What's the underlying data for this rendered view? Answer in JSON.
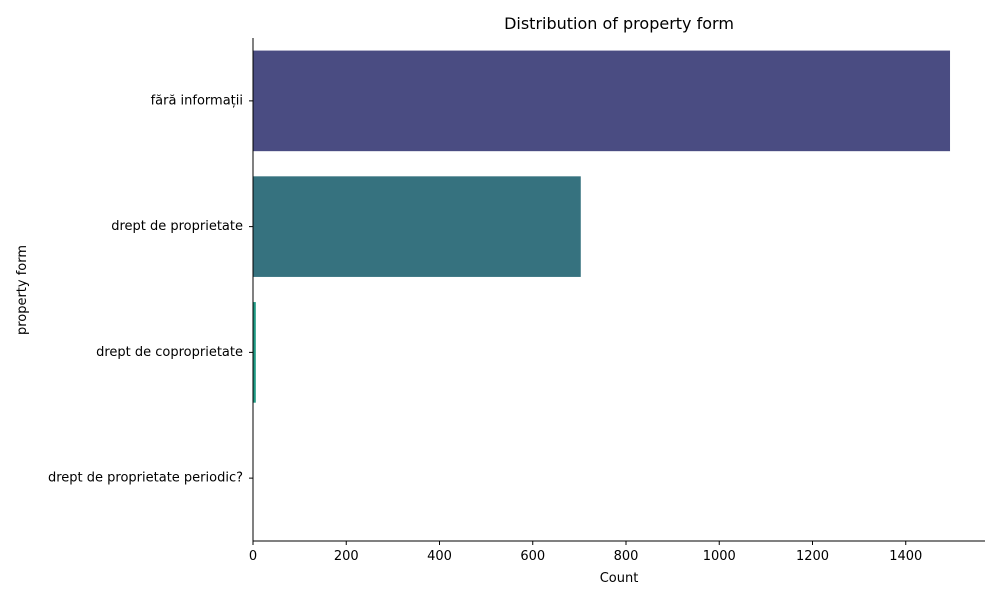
{
  "chart_data": {
    "type": "bar",
    "orientation": "horizontal",
    "title": "Distribution of property form",
    "xlabel": "Count",
    "ylabel": "property form",
    "categories": [
      "fără informații",
      "drept de proprietate",
      "drept de coproprietate",
      "drept de proprietate periodic?"
    ],
    "values": [
      1495,
      703,
      6,
      1
    ],
    "colors": [
      "#4a4c82",
      "#36727f",
      "#1f9a84",
      "#5dc05f"
    ],
    "xlim": [
      0,
      1570
    ],
    "xticks": [
      0,
      200,
      400,
      600,
      800,
      1000,
      1200,
      1400
    ],
    "grid": false,
    "legend": "none"
  }
}
